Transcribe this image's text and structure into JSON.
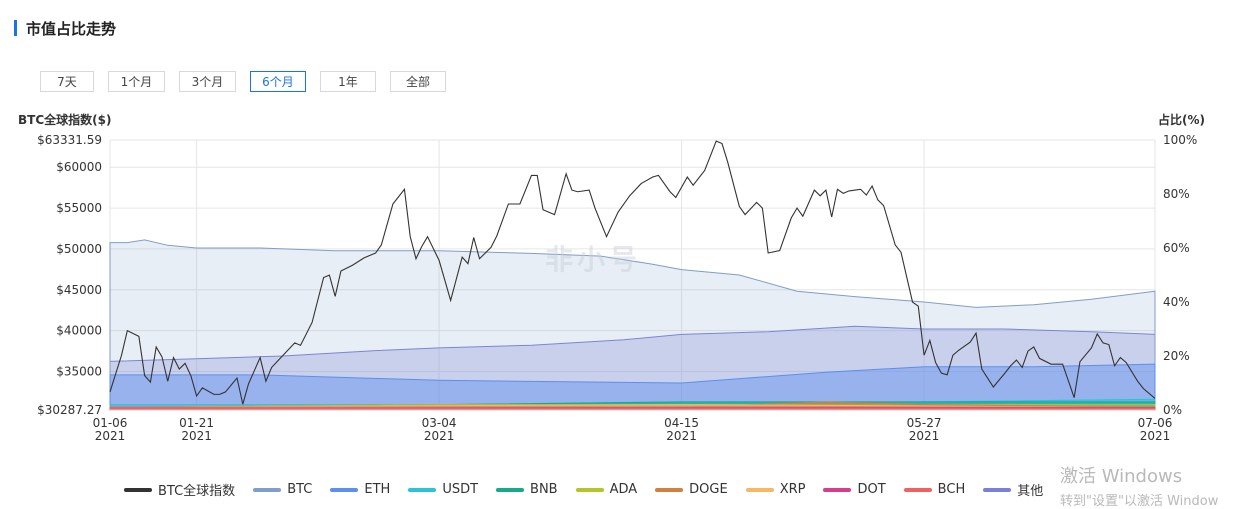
{
  "header": {
    "title": "市值占比走势"
  },
  "range_tabs": [
    {
      "label": "7天"
    },
    {
      "label": "1个月"
    },
    {
      "label": "3个月"
    },
    {
      "label": "6个月",
      "active": true
    },
    {
      "label": "1年"
    },
    {
      "label": "全部"
    }
  ],
  "logo_text": "非小号",
  "watermark": {
    "line1": "激活 Windows",
    "line2": "转到\"设置\"以激活 Window"
  },
  "colors": {
    "btc_index": "#333333",
    "BTC": "#7f9ec9",
    "ETH": "#5b8ff0",
    "USDT": "#2ac3d8",
    "BNB": "#16a98a",
    "ADA": "#b5c427",
    "DOGE": "#d0813f",
    "XRP": "#f5b865",
    "DOT": "#d63d8f",
    "BCH": "#f06262",
    "其他": "#7b7fdc"
  },
  "chart_data": {
    "type": "line",
    "left_axis_title": "BTC全球指数($)",
    "right_axis_title": "占比(%)",
    "left_ticks": [
      "$63331.59",
      "$60000",
      "$55000",
      "$50000",
      "$45000",
      "$40000",
      "$35000",
      "$30287.27"
    ],
    "left_tick_values": [
      63331.59,
      60000,
      55000,
      50000,
      45000,
      40000,
      35000,
      30287.27
    ],
    "left_ylim": [
      30287.27,
      63331.59
    ],
    "right_ticks": [
      "100%",
      "80%",
      "60%",
      "40%",
      "20%",
      "0%"
    ],
    "right_tick_values": [
      100,
      80,
      60,
      40,
      20,
      0
    ],
    "right_ylim": [
      0,
      100
    ],
    "x_ticks": [
      {
        "date": "2021-01-06",
        "line1": "01-06",
        "line2": "2021"
      },
      {
        "date": "2021-01-21",
        "line1": "01-21",
        "line2": "2021"
      },
      {
        "date": "2021-03-04",
        "line1": "03-04",
        "line2": "2021"
      },
      {
        "date": "2021-04-15",
        "line1": "04-15",
        "line2": "2021"
      },
      {
        "date": "2021-05-27",
        "line1": "05-27",
        "line2": "2021"
      },
      {
        "date": "2021-07-06",
        "line1": "07-06",
        "line2": "2021"
      }
    ],
    "xlim": [
      "2021-01-06",
      "2021-07-06"
    ],
    "legend": [
      "BTC全球指数",
      "BTC",
      "ETH",
      "USDT",
      "BNB",
      "ADA",
      "DOGE",
      "XRP",
      "DOT",
      "BCH",
      "其他"
    ],
    "btc_index": {
      "name": "BTC全球指数",
      "points": [
        [
          "2021-01-06",
          32500
        ],
        [
          "2021-01-08",
          37000
        ],
        [
          "2021-01-09",
          40000
        ],
        [
          "2021-01-11",
          39300
        ],
        [
          "2021-01-12",
          34500
        ],
        [
          "2021-01-13",
          33700
        ],
        [
          "2021-01-14",
          38000
        ],
        [
          "2021-01-15",
          36800
        ],
        [
          "2021-01-16",
          33800
        ],
        [
          "2021-01-17",
          36700
        ],
        [
          "2021-01-18",
          35300
        ],
        [
          "2021-01-19",
          36000
        ],
        [
          "2021-01-20",
          34500
        ],
        [
          "2021-01-21",
          32000
        ],
        [
          "2021-01-22",
          33000
        ],
        [
          "2021-01-24",
          32200
        ],
        [
          "2021-01-25",
          32200
        ],
        [
          "2021-01-26",
          32500
        ],
        [
          "2021-01-28",
          34200
        ],
        [
          "2021-01-29",
          31000
        ],
        [
          "2021-01-30",
          33500
        ],
        [
          "2021-02-01",
          36700
        ],
        [
          "2021-02-02",
          33800
        ],
        [
          "2021-02-03",
          35500
        ],
        [
          "2021-02-05",
          37000
        ],
        [
          "2021-02-07",
          38500
        ],
        [
          "2021-02-08",
          38200
        ],
        [
          "2021-02-10",
          41000
        ],
        [
          "2021-02-12",
          46500
        ],
        [
          "2021-02-13",
          46800
        ],
        [
          "2021-02-14",
          44200
        ],
        [
          "2021-02-15",
          47300
        ],
        [
          "2021-02-17",
          48000
        ],
        [
          "2021-02-19",
          48900
        ],
        [
          "2021-02-21",
          49500
        ],
        [
          "2021-02-22",
          50500
        ],
        [
          "2021-02-24",
          55500
        ],
        [
          "2021-02-26",
          57300
        ],
        [
          "2021-02-27",
          51500
        ],
        [
          "2021-02-28",
          48800
        ],
        [
          "2021-03-01",
          50300
        ],
        [
          "2021-03-02",
          51500
        ],
        [
          "2021-03-04",
          48600
        ],
        [
          "2021-03-06",
          43700
        ],
        [
          "2021-03-08",
          49000
        ],
        [
          "2021-03-09",
          48200
        ],
        [
          "2021-03-10",
          51400
        ],
        [
          "2021-03-11",
          48800
        ],
        [
          "2021-03-13",
          50200
        ],
        [
          "2021-03-14",
          51600
        ],
        [
          "2021-03-16",
          55500
        ],
        [
          "2021-03-18",
          55500
        ],
        [
          "2021-03-20",
          59000
        ],
        [
          "2021-03-21",
          59000
        ],
        [
          "2021-03-22",
          54800
        ],
        [
          "2021-03-24",
          54200
        ],
        [
          "2021-03-26",
          59200
        ],
        [
          "2021-03-27",
          57200
        ],
        [
          "2021-03-28",
          57000
        ],
        [
          "2021-03-30",
          57200
        ],
        [
          "2021-03-31",
          55000
        ],
        [
          "2021-04-02",
          51500
        ],
        [
          "2021-04-04",
          54500
        ],
        [
          "2021-04-06",
          56500
        ],
        [
          "2021-04-08",
          58000
        ],
        [
          "2021-04-10",
          58800
        ],
        [
          "2021-04-11",
          59000
        ],
        [
          "2021-04-12",
          58000
        ],
        [
          "2021-04-13",
          57000
        ],
        [
          "2021-04-14",
          56300
        ],
        [
          "2021-04-16",
          58800
        ],
        [
          "2021-04-17",
          57800
        ],
        [
          "2021-04-19",
          59600
        ],
        [
          "2021-04-20",
          61400
        ],
        [
          "2021-04-21",
          63200
        ],
        [
          "2021-04-22",
          62900
        ],
        [
          "2021-04-23",
          60600
        ],
        [
          "2021-04-25",
          55200
        ],
        [
          "2021-04-26",
          54200
        ],
        [
          "2021-04-28",
          55700
        ],
        [
          "2021-04-29",
          55000
        ],
        [
          "2021-04-30",
          49500
        ],
        [
          "2021-05-02",
          49800
        ],
        [
          "2021-05-04",
          53800
        ],
        [
          "2021-05-05",
          55000
        ],
        [
          "2021-05-06",
          54000
        ],
        [
          "2021-05-08",
          57200
        ],
        [
          "2021-05-09",
          56500
        ],
        [
          "2021-05-10",
          57200
        ],
        [
          "2021-05-11",
          53900
        ],
        [
          "2021-05-12",
          57300
        ],
        [
          "2021-05-13",
          56800
        ],
        [
          "2021-05-14",
          57100
        ],
        [
          "2021-05-16",
          57300
        ],
        [
          "2021-05-17",
          56600
        ],
        [
          "2021-05-18",
          57700
        ],
        [
          "2021-05-19",
          56000
        ],
        [
          "2021-05-20",
          55300
        ],
        [
          "2021-05-22",
          50500
        ],
        [
          "2021-05-23",
          49600
        ],
        [
          "2021-05-25",
          43500
        ],
        [
          "2021-05-26",
          43000
        ],
        [
          "2021-05-27",
          37000
        ],
        [
          "2021-05-28",
          38800
        ],
        [
          "2021-05-29",
          36100
        ],
        [
          "2021-05-30",
          34800
        ],
        [
          "2021-05-31",
          34600
        ],
        [
          "2021-06-01",
          37000
        ],
        [
          "2021-06-02",
          37600
        ],
        [
          "2021-06-04",
          38600
        ],
        [
          "2021-06-05",
          39700
        ],
        [
          "2021-06-06",
          35300
        ],
        [
          "2021-06-08",
          33100
        ],
        [
          "2021-06-10",
          34800
        ],
        [
          "2021-06-11",
          35700
        ],
        [
          "2021-06-12",
          36400
        ],
        [
          "2021-06-13",
          35500
        ],
        [
          "2021-06-14",
          37500
        ],
        [
          "2021-06-15",
          38000
        ],
        [
          "2021-06-16",
          36600
        ],
        [
          "2021-06-18",
          35900
        ],
        [
          "2021-06-20",
          35900
        ],
        [
          "2021-06-22",
          31800
        ],
        [
          "2021-06-23",
          36200
        ],
        [
          "2021-06-25",
          37900
        ],
        [
          "2021-06-26",
          39600
        ],
        [
          "2021-06-27",
          38500
        ],
        [
          "2021-06-28",
          38300
        ],
        [
          "2021-06-29",
          35700
        ],
        [
          "2021-06-30",
          36700
        ],
        [
          "2021-07-01",
          36100
        ],
        [
          "2021-07-03",
          33800
        ],
        [
          "2021-07-04",
          32900
        ],
        [
          "2021-07-06",
          31700
        ]
      ]
    },
    "share_series": [
      {
        "name": "其他",
        "points": [
          [
            "2021-01-06",
            18
          ],
          [
            "2021-01-21",
            19
          ],
          [
            "2021-02-05",
            20
          ],
          [
            "2021-02-21",
            22
          ],
          [
            "2021-03-04",
            23
          ],
          [
            "2021-03-20",
            24
          ],
          [
            "2021-04-05",
            26
          ],
          [
            "2021-04-15",
            28
          ],
          [
            "2021-04-30",
            29
          ],
          [
            "2021-05-15",
            31
          ],
          [
            "2021-05-27",
            30
          ],
          [
            "2021-06-10",
            30
          ],
          [
            "2021-06-25",
            29
          ],
          [
            "2021-07-06",
            28
          ]
        ]
      },
      {
        "name": "BTC",
        "points": [
          [
            "2021-01-06",
            62
          ],
          [
            "2021-01-09",
            62
          ],
          [
            "2021-01-12",
            63
          ],
          [
            "2021-01-16",
            61
          ],
          [
            "2021-01-21",
            60
          ],
          [
            "2021-02-01",
            60
          ],
          [
            "2021-02-14",
            59
          ],
          [
            "2021-02-28",
            59
          ],
          [
            "2021-03-04",
            59
          ],
          [
            "2021-03-20",
            58
          ],
          [
            "2021-04-01",
            57
          ],
          [
            "2021-04-10",
            54
          ],
          [
            "2021-04-15",
            52
          ],
          [
            "2021-04-25",
            50
          ],
          [
            "2021-05-05",
            44
          ],
          [
            "2021-05-15",
            42
          ],
          [
            "2021-05-27",
            40
          ],
          [
            "2021-06-05",
            38
          ],
          [
            "2021-06-15",
            39
          ],
          [
            "2021-06-25",
            41
          ],
          [
            "2021-07-06",
            44
          ]
        ]
      },
      {
        "name": "ETH",
        "points": [
          [
            "2021-01-06",
            13
          ],
          [
            "2021-02-01",
            13
          ],
          [
            "2021-03-04",
            11
          ],
          [
            "2021-04-15",
            10
          ],
          [
            "2021-05-10",
            14
          ],
          [
            "2021-05-27",
            16
          ],
          [
            "2021-06-15",
            16
          ],
          [
            "2021-07-06",
            17
          ]
        ]
      },
      {
        "name": "USDT",
        "points": [
          [
            "2021-01-06",
            2
          ],
          [
            "2021-03-04",
            2
          ],
          [
            "2021-05-27",
            3
          ],
          [
            "2021-07-06",
            4
          ]
        ]
      },
      {
        "name": "BNB",
        "points": [
          [
            "2021-01-06",
            1
          ],
          [
            "2021-03-04",
            2
          ],
          [
            "2021-04-15",
            3
          ],
          [
            "2021-05-27",
            3
          ],
          [
            "2021-07-06",
            3
          ]
        ]
      },
      {
        "name": "ADA",
        "points": [
          [
            "2021-01-06",
            1
          ],
          [
            "2021-03-04",
            2
          ],
          [
            "2021-05-27",
            2
          ],
          [
            "2021-07-06",
            2
          ]
        ]
      },
      {
        "name": "DOGE",
        "points": [
          [
            "2021-01-06",
            0.5
          ],
          [
            "2021-04-15",
            1
          ],
          [
            "2021-05-10",
            3
          ],
          [
            "2021-05-27",
            2
          ],
          [
            "2021-07-06",
            1
          ]
        ]
      },
      {
        "name": "XRP",
        "points": [
          [
            "2021-01-06",
            1
          ],
          [
            "2021-04-15",
            2
          ],
          [
            "2021-07-06",
            1
          ]
        ]
      },
      {
        "name": "DOT",
        "points": [
          [
            "2021-01-06",
            1
          ],
          [
            "2021-03-04",
            1
          ],
          [
            "2021-07-06",
            1
          ]
        ]
      },
      {
        "name": "BCH",
        "points": [
          [
            "2021-01-06",
            1
          ],
          [
            "2021-07-06",
            0.5
          ]
        ]
      }
    ]
  }
}
